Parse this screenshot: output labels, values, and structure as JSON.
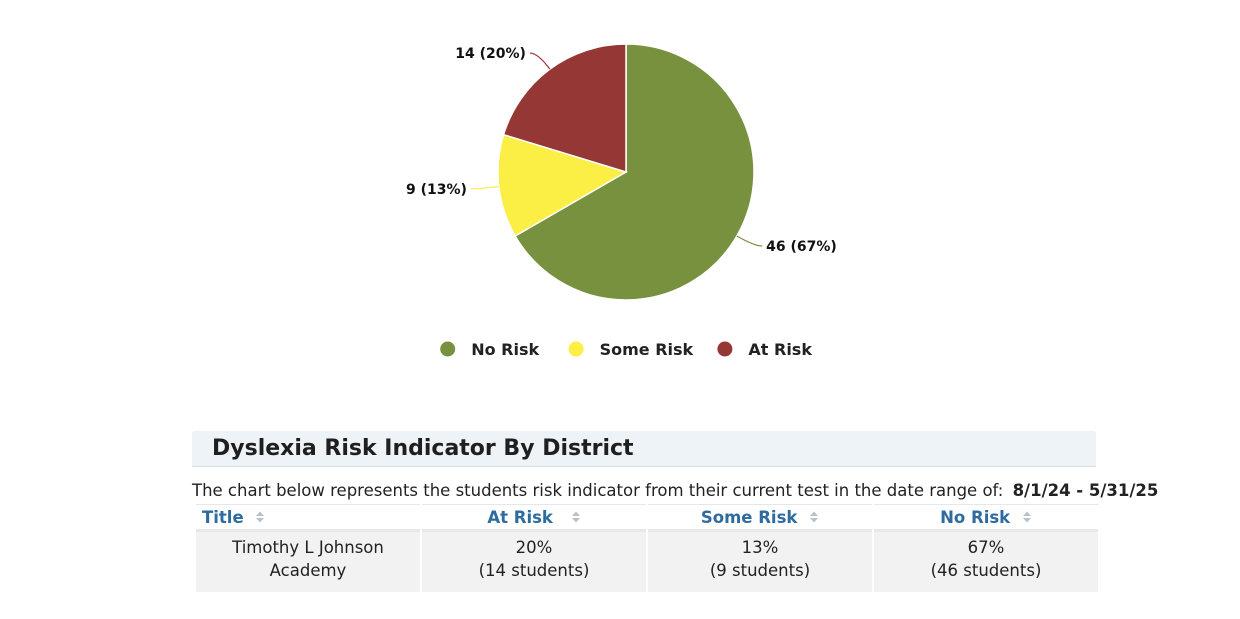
{
  "chart_data": {
    "type": "pie",
    "slices": [
      {
        "name": "No Risk",
        "value": 46,
        "label": "46 (67%)",
        "color": "#77913e"
      },
      {
        "name": "Some Risk",
        "value": 9,
        "label": "9 (13%)",
        "color": "#fbee44"
      },
      {
        "name": "At Risk",
        "value": 14,
        "label": "14 (20%)",
        "color": "#953735"
      }
    ],
    "legend_placement": "bottom-center"
  },
  "panel": {
    "title": "Dyslexia Risk Indicator By District",
    "description": "The chart below represents the students risk indicator from their current test in the date range of:",
    "date_range": "8/1/24 - 5/31/25"
  },
  "table": {
    "headers": {
      "title": "Title",
      "at_risk": "At Risk",
      "some_risk": "Some Risk",
      "no_risk": "No Risk"
    },
    "rows": [
      {
        "title": "Timothy L Johnson Academy",
        "at_risk_pct": "20%",
        "at_risk_count": "(14 students)",
        "some_risk_pct": "13%",
        "some_risk_count": "(9 students)",
        "no_risk_pct": "67%",
        "no_risk_count": "(46 students)"
      }
    ]
  },
  "icons": {
    "sort": "sort-icon"
  }
}
